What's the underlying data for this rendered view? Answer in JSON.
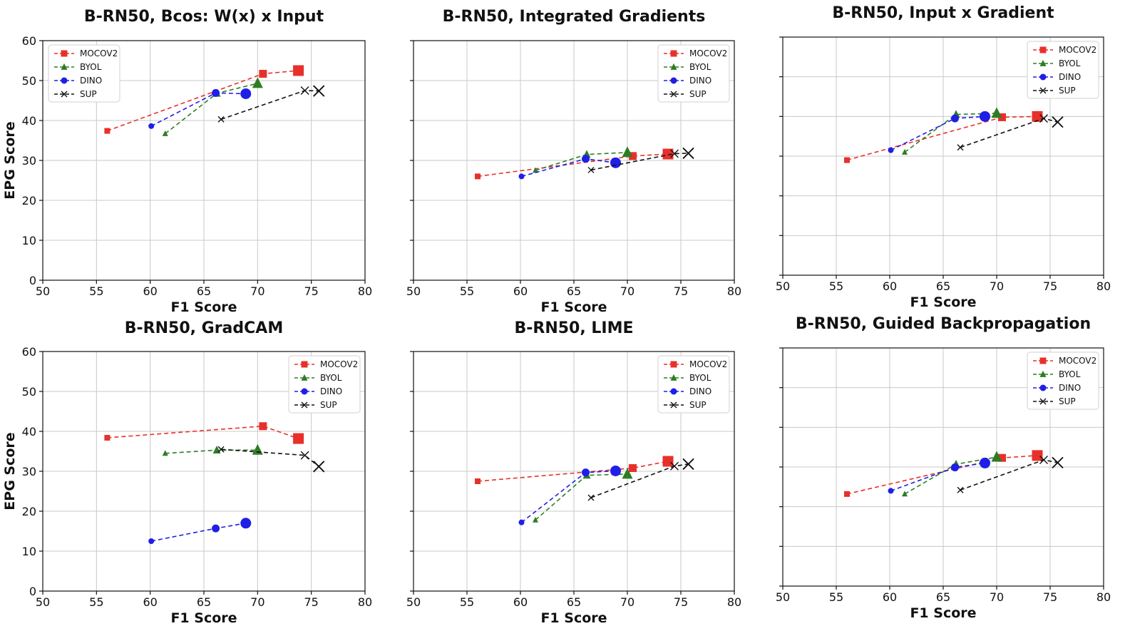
{
  "figure": {
    "series_colors": {
      "MOCOV2": "#e8302a",
      "BYOL": "#2e7d24",
      "DINO": "#1f1fe6",
      "SUP": "#111111"
    }
  },
  "chart_data": [
    {
      "type": "line",
      "title": "B-RN50, Bcos: W(x) x Input",
      "xlabel": "F1 Score",
      "ylabel": "EPG Score",
      "xlim": [
        50,
        80
      ],
      "ylim": [
        0,
        60
      ],
      "xticks": [
        "50",
        "55",
        "60",
        "65",
        "70",
        "75",
        "80"
      ],
      "yticks": [
        "0",
        "10",
        "20",
        "30",
        "40",
        "50",
        "60"
      ],
      "grid": true,
      "legend": "top-left",
      "series": [
        {
          "name": "MOCOV2",
          "marker": "square",
          "points": [
            [
              56.0,
              37.4
            ],
            [
              70.5,
              51.7
            ],
            [
              73.8,
              52.5
            ]
          ]
        },
        {
          "name": "BYOL",
          "marker": "triangle",
          "points": [
            [
              61.4,
              36.7
            ],
            [
              66.2,
              46.8
            ],
            [
              70.0,
              49.3
            ]
          ]
        },
        {
          "name": "DINO",
          "marker": "circle",
          "points": [
            [
              60.1,
              38.6
            ],
            [
              66.1,
              46.9
            ],
            [
              68.9,
              46.7
            ]
          ]
        },
        {
          "name": "SUP",
          "marker": "x",
          "points": [
            [
              66.6,
              40.3
            ],
            [
              74.4,
              47.5
            ],
            [
              75.7,
              47.4
            ]
          ]
        }
      ]
    },
    {
      "type": "line",
      "title": "B-RN50, Integrated Gradients",
      "xlabel": "F1 Score",
      "ylabel": "",
      "xlim": [
        50,
        80
      ],
      "ylim": [
        0,
        60
      ],
      "xticks": [
        "50",
        "55",
        "60",
        "65",
        "70",
        "75",
        "80"
      ],
      "yticks": [],
      "grid": true,
      "legend": "top-right",
      "series": [
        {
          "name": "MOCOV2",
          "marker": "square",
          "points": [
            [
              56.0,
              26.0
            ],
            [
              70.5,
              31.1
            ],
            [
              73.8,
              31.6
            ]
          ]
        },
        {
          "name": "BYOL",
          "marker": "triangle",
          "points": [
            [
              61.4,
              27.5
            ],
            [
              66.2,
              31.5
            ],
            [
              70.0,
              32.0
            ]
          ]
        },
        {
          "name": "DINO",
          "marker": "circle",
          "points": [
            [
              60.1,
              26.0
            ],
            [
              66.1,
              30.4
            ],
            [
              68.9,
              29.4
            ]
          ]
        },
        {
          "name": "SUP",
          "marker": "x",
          "points": [
            [
              66.6,
              27.6
            ],
            [
              74.4,
              31.7
            ],
            [
              75.7,
              31.8
            ]
          ]
        }
      ]
    },
    {
      "type": "line",
      "title": "B-RN50, Input x Gradient",
      "xlabel": "F1 Score",
      "ylabel": "",
      "xlim": [
        50,
        80
      ],
      "ylim": [
        0,
        60
      ],
      "xticks": [
        "50",
        "55",
        "60",
        "65",
        "70",
        "75",
        "80"
      ],
      "yticks": [],
      "grid": true,
      "legend": "top-right",
      "series": [
        {
          "name": "MOCOV2",
          "marker": "square",
          "points": [
            [
              56.0,
              29.0
            ],
            [
              70.5,
              39.8
            ],
            [
              73.8,
              40.0
            ]
          ]
        },
        {
          "name": "BYOL",
          "marker": "triangle",
          "points": [
            [
              61.4,
              31.0
            ],
            [
              66.2,
              40.5
            ],
            [
              70.0,
              40.8
            ]
          ]
        },
        {
          "name": "DINO",
          "marker": "circle",
          "points": [
            [
              60.1,
              31.5
            ],
            [
              66.1,
              39.5
            ],
            [
              68.9,
              40.0
            ]
          ]
        },
        {
          "name": "SUP",
          "marker": "x",
          "points": [
            [
              66.6,
              32.2
            ],
            [
              74.4,
              39.5
            ],
            [
              75.7,
              38.6
            ]
          ]
        }
      ]
    },
    {
      "type": "line",
      "title": "B-RN50, GradCAM",
      "xlabel": "F1 Score",
      "ylabel": "EPG Score",
      "xlim": [
        50,
        80
      ],
      "ylim": [
        0,
        60
      ],
      "xticks": [
        "50",
        "55",
        "60",
        "65",
        "70",
        "75",
        "80"
      ],
      "yticks": [
        "0",
        "10",
        "20",
        "30",
        "40",
        "50",
        "60"
      ],
      "grid": true,
      "legend": "top-right",
      "series": [
        {
          "name": "MOCOV2",
          "marker": "square",
          "points": [
            [
              56.0,
              38.4
            ],
            [
              70.5,
              41.3
            ],
            [
              73.8,
              38.2
            ]
          ]
        },
        {
          "name": "BYOL",
          "marker": "triangle",
          "points": [
            [
              61.4,
              34.5
            ],
            [
              66.2,
              35.3
            ],
            [
              70.0,
              35.3
            ]
          ]
        },
        {
          "name": "DINO",
          "marker": "circle",
          "points": [
            [
              60.1,
              12.5
            ],
            [
              66.1,
              15.7
            ],
            [
              68.9,
              17.0
            ]
          ]
        },
        {
          "name": "SUP",
          "marker": "x",
          "points": [
            [
              66.6,
              35.5
            ],
            [
              74.4,
              34.0
            ],
            [
              75.7,
              31.2
            ]
          ]
        }
      ]
    },
    {
      "type": "line",
      "title": "B-RN50, LIME",
      "xlabel": "F1 Score",
      "ylabel": "",
      "xlim": [
        50,
        80
      ],
      "ylim": [
        0,
        60
      ],
      "xticks": [
        "50",
        "55",
        "60",
        "65",
        "70",
        "75",
        "80"
      ],
      "yticks": [],
      "grid": true,
      "legend": "top-right",
      "series": [
        {
          "name": "MOCOV2",
          "marker": "square",
          "points": [
            [
              56.0,
              27.5
            ],
            [
              70.5,
              30.8
            ],
            [
              73.8,
              32.5
            ]
          ]
        },
        {
          "name": "BYOL",
          "marker": "triangle",
          "points": [
            [
              61.4,
              17.8
            ],
            [
              66.2,
              29.0
            ],
            [
              70.0,
              29.3
            ]
          ]
        },
        {
          "name": "DINO",
          "marker": "circle",
          "points": [
            [
              60.1,
              17.2
            ],
            [
              66.1,
              29.7
            ],
            [
              68.9,
              30.1
            ]
          ]
        },
        {
          "name": "SUP",
          "marker": "x",
          "points": [
            [
              66.6,
              23.4
            ],
            [
              74.4,
              31.3
            ],
            [
              75.7,
              31.8
            ]
          ]
        }
      ]
    },
    {
      "type": "line",
      "title": "B-RN50, Guided Backpropagation",
      "xlabel": "F1 Score",
      "ylabel": "",
      "xlim": [
        50,
        80
      ],
      "ylim": [
        0,
        60
      ],
      "xticks": [
        "50",
        "55",
        "60",
        "65",
        "70",
        "75",
        "80"
      ],
      "yticks": [],
      "grid": true,
      "legend": "top-right",
      "series": [
        {
          "name": "MOCOV2",
          "marker": "square",
          "points": [
            [
              56.0,
              23.2
            ],
            [
              70.5,
              32.3
            ],
            [
              73.8,
              32.9
            ]
          ]
        },
        {
          "name": "BYOL",
          "marker": "triangle",
          "points": [
            [
              61.4,
              23.2
            ],
            [
              66.2,
              30.7
            ],
            [
              70.0,
              32.5
            ]
          ]
        },
        {
          "name": "DINO",
          "marker": "circle",
          "points": [
            [
              60.1,
              24.0
            ],
            [
              66.1,
              29.9
            ],
            [
              68.9,
              31.0
            ]
          ]
        },
        {
          "name": "SUP",
          "marker": "x",
          "points": [
            [
              66.6,
              24.2
            ],
            [
              74.4,
              31.8
            ],
            [
              75.7,
              31.1
            ]
          ]
        }
      ]
    }
  ]
}
